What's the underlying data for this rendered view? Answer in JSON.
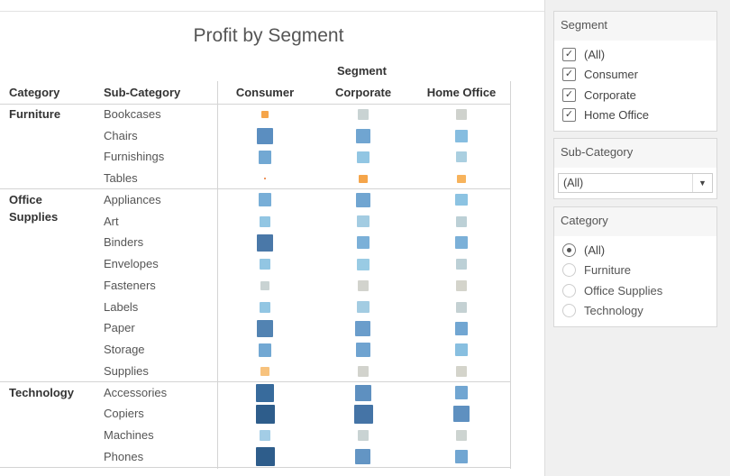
{
  "title": "Profit by Segment",
  "headers": {
    "segment": "Segment",
    "category": "Category",
    "subcategory": "Sub-Category",
    "columns": [
      "Consumer",
      "Corporate",
      "Home Office"
    ]
  },
  "categories": [
    {
      "name": "Furniture",
      "rows": [
        {
          "sub": "Bookcases",
          "marks": [
            {
              "size": 0.38,
              "color": "#f5a54a"
            },
            {
              "size": 0.57,
              "color": "#c9d3d3"
            },
            {
              "size": 0.57,
              "color": "#cfd2cd"
            }
          ]
        },
        {
          "sub": "Chairs",
          "marks": [
            {
              "size": 0.86,
              "color": "#5b8ec0"
            },
            {
              "size": 0.76,
              "color": "#70a5d1"
            },
            {
              "size": 0.67,
              "color": "#86bde0"
            }
          ]
        },
        {
          "sub": "Furnishings",
          "marks": [
            {
              "size": 0.71,
              "color": "#72a8d3"
            },
            {
              "size": 0.62,
              "color": "#92c6e3"
            },
            {
              "size": 0.57,
              "color": "#aacfe0"
            }
          ]
        },
        {
          "sub": "Tables",
          "marks": [
            {
              "size": 0.1,
              "color": "#e8732a"
            },
            {
              "size": 0.43,
              "color": "#f5a54a"
            },
            {
              "size": 0.43,
              "color": "#f7b35c"
            }
          ]
        }
      ]
    },
    {
      "name": "Office Supplies",
      "rows": [
        {
          "sub": "Appliances",
          "marks": [
            {
              "size": 0.71,
              "color": "#78aed7"
            },
            {
              "size": 0.76,
              "color": "#70a5d1"
            },
            {
              "size": 0.62,
              "color": "#8cc3e2"
            }
          ]
        },
        {
          "sub": "Art",
          "marks": [
            {
              "size": 0.57,
              "color": "#92c6e3"
            },
            {
              "size": 0.62,
              "color": "#a3cce2"
            },
            {
              "size": 0.57,
              "color": "#bcd0d6"
            }
          ]
        },
        {
          "sub": "Binders",
          "marks": [
            {
              "size": 0.9,
              "color": "#4a78a8"
            },
            {
              "size": 0.67,
              "color": "#7bb0d8"
            },
            {
              "size": 0.67,
              "color": "#7bb0d8"
            }
          ]
        },
        {
          "sub": "Envelopes",
          "marks": [
            {
              "size": 0.57,
              "color": "#92c6e3"
            },
            {
              "size": 0.62,
              "color": "#99cbe4"
            },
            {
              "size": 0.57,
              "color": "#bcd0d6"
            }
          ]
        },
        {
          "sub": "Fasteners",
          "marks": [
            {
              "size": 0.48,
              "color": "#c9d3d3"
            },
            {
              "size": 0.57,
              "color": "#d2d3cd"
            },
            {
              "size": 0.57,
              "color": "#d4d4cb"
            }
          ]
        },
        {
          "sub": "Labels",
          "marks": [
            {
              "size": 0.57,
              "color": "#92c6e3"
            },
            {
              "size": 0.62,
              "color": "#a3cce2"
            },
            {
              "size": 0.57,
              "color": "#c4d1d3"
            }
          ]
        },
        {
          "sub": "Paper",
          "marks": [
            {
              "size": 0.9,
              "color": "#5283b2"
            },
            {
              "size": 0.81,
              "color": "#6a9dcb"
            },
            {
              "size": 0.71,
              "color": "#71a6d2"
            }
          ]
        },
        {
          "sub": "Storage",
          "marks": [
            {
              "size": 0.71,
              "color": "#72a8d3"
            },
            {
              "size": 0.76,
              "color": "#6fa3d0"
            },
            {
              "size": 0.67,
              "color": "#88bfe0"
            }
          ]
        },
        {
          "sub": "Supplies",
          "marks": [
            {
              "size": 0.48,
              "color": "#f7c27d"
            },
            {
              "size": 0.57,
              "color": "#d2d3cd"
            },
            {
              "size": 0.57,
              "color": "#d4d4cb"
            }
          ]
        }
      ]
    },
    {
      "name": "Technology",
      "rows": [
        {
          "sub": "Accessories",
          "marks": [
            {
              "size": 0.95,
              "color": "#386b9c"
            },
            {
              "size": 0.86,
              "color": "#5e90c0"
            },
            {
              "size": 0.71,
              "color": "#71a6d2"
            }
          ]
        },
        {
          "sub": "Copiers",
          "marks": [
            {
              "size": 1.0,
              "color": "#2e5d8b"
            },
            {
              "size": 1.0,
              "color": "#4574a6"
            },
            {
              "size": 0.86,
              "color": "#5e90c0"
            }
          ]
        },
        {
          "sub": "Machines",
          "marks": [
            {
              "size": 0.57,
              "color": "#a3cde6"
            },
            {
              "size": 0.57,
              "color": "#c9d3d3"
            },
            {
              "size": 0.57,
              "color": "#cdd4d1"
            }
          ]
        },
        {
          "sub": "Phones",
          "marks": [
            {
              "size": 1.0,
              "color": "#2e5d8b"
            },
            {
              "size": 0.81,
              "color": "#6395c4"
            },
            {
              "size": 0.71,
              "color": "#71a6d2"
            }
          ]
        }
      ]
    }
  ],
  "filters": {
    "segment": {
      "title": "Segment",
      "options": [
        {
          "label": "(All)",
          "checked": true
        },
        {
          "label": "Consumer",
          "checked": true
        },
        {
          "label": "Corporate",
          "checked": true
        },
        {
          "label": "Home Office",
          "checked": true
        }
      ]
    },
    "subcategory": {
      "title": "Sub-Category",
      "value": "(All)"
    },
    "category": {
      "title": "Category",
      "options": [
        {
          "label": "(All)",
          "selected": true
        },
        {
          "label": "Furniture",
          "selected": false
        },
        {
          "label": "Office Supplies",
          "selected": false
        },
        {
          "label": "Technology",
          "selected": false
        }
      ]
    }
  }
}
